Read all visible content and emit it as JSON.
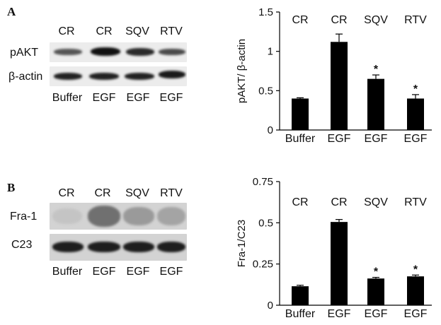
{
  "panels": [
    {
      "letter": "A",
      "blot": {
        "lanes_top": [
          "CR",
          "CR",
          "SQV",
          "RTV"
        ],
        "rows": [
          "pAKT",
          "β-actin"
        ],
        "lanes_bottom": [
          "Buffer",
          "EGF",
          "EGF",
          "EGF"
        ],
        "band_intensity": {
          "pAKT": [
            0.45,
            0.85,
            0.7,
            0.5
          ],
          "β-actin": [
            0.8,
            0.8,
            0.8,
            0.8
          ]
        }
      },
      "chart_data": {
        "type": "bar",
        "top_labels": [
          "CR",
          "CR",
          "SQV",
          "RTV"
        ],
        "categories": [
          "Buffer",
          "EGF",
          "EGF",
          "EGF"
        ],
        "values": [
          0.4,
          1.12,
          0.65,
          0.4
        ],
        "errors": [
          0.01,
          0.1,
          0.05,
          0.05
        ],
        "significance": [
          "",
          "",
          "*",
          "*"
        ],
        "ylabel": "pAKT/ β-actin",
        "ylim": [
          0,
          1.5
        ],
        "yticks": [
          0,
          0.5,
          1,
          1.5
        ],
        "ytick_labels": [
          "0",
          "0.5",
          "1",
          "1.5"
        ],
        "grid": false,
        "bar_color": "#000000"
      }
    },
    {
      "letter": "B",
      "blot": {
        "lanes_top": [
          "CR",
          "CR",
          "SQV",
          "RTV"
        ],
        "rows": [
          "Fra-1",
          "C23"
        ],
        "lanes_bottom": [
          "Buffer",
          "EGF",
          "EGF",
          "EGF"
        ],
        "band_intensity": {
          "Fra-1": [
            0.05,
            0.45,
            0.25,
            0.2
          ],
          "C23": [
            0.85,
            0.85,
            0.85,
            0.85
          ]
        }
      },
      "chart_data": {
        "type": "bar",
        "top_labels": [
          "CR",
          "CR",
          "SQV",
          "RTV"
        ],
        "categories": [
          "Buffer",
          "EGF",
          "EGF",
          "EGF"
        ],
        "values": [
          0.115,
          0.505,
          0.162,
          0.175
        ],
        "errors": [
          0.006,
          0.015,
          0.007,
          0.008
        ],
        "significance": [
          "",
          "",
          "*",
          "*"
        ],
        "ylabel": "Fra-1/C23",
        "ylim": [
          0,
          0.75
        ],
        "yticks": [
          0,
          0.25,
          0.5,
          0.75
        ],
        "ytick_labels": [
          "0",
          "0.25",
          "0.5",
          "0.75"
        ],
        "grid": false,
        "bar_color": "#000000"
      }
    }
  ]
}
